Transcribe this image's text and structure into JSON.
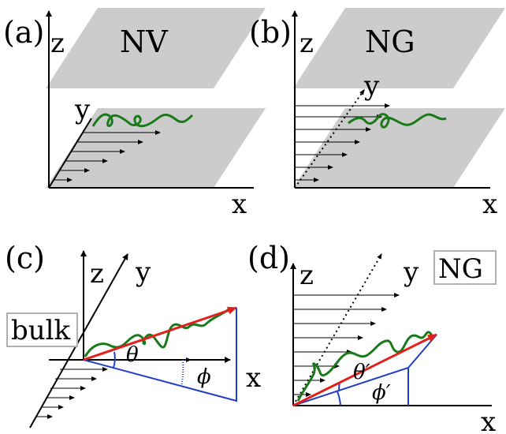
{
  "panels": {
    "a": {
      "label": "(a)",
      "axis_z": "z",
      "axis_y": "y",
      "axis_x": "x",
      "plate_text": "NV"
    },
    "b": {
      "label": "(b)",
      "axis_z": "z",
      "axis_y": "y",
      "axis_x": "x",
      "plate_text": "NG"
    },
    "c": {
      "label": "(c)",
      "axis_z": "z",
      "axis_y": "y",
      "axis_x": "x",
      "box_text": "bulk",
      "theta": "θ",
      "phi": "ϕ"
    },
    "d": {
      "label": "(d)",
      "axis_z": "z",
      "axis_y": "y",
      "axis_x": "x",
      "box_text": "NG",
      "theta": "θ′",
      "phi": "ϕ′"
    }
  },
  "colors": {
    "plate": "#cccccc",
    "polymer": "#1a7a1a",
    "vector": "#e0201a",
    "projection": "#1f3fc8",
    "axis": "#000000",
    "flow_arrow": "#000000"
  }
}
